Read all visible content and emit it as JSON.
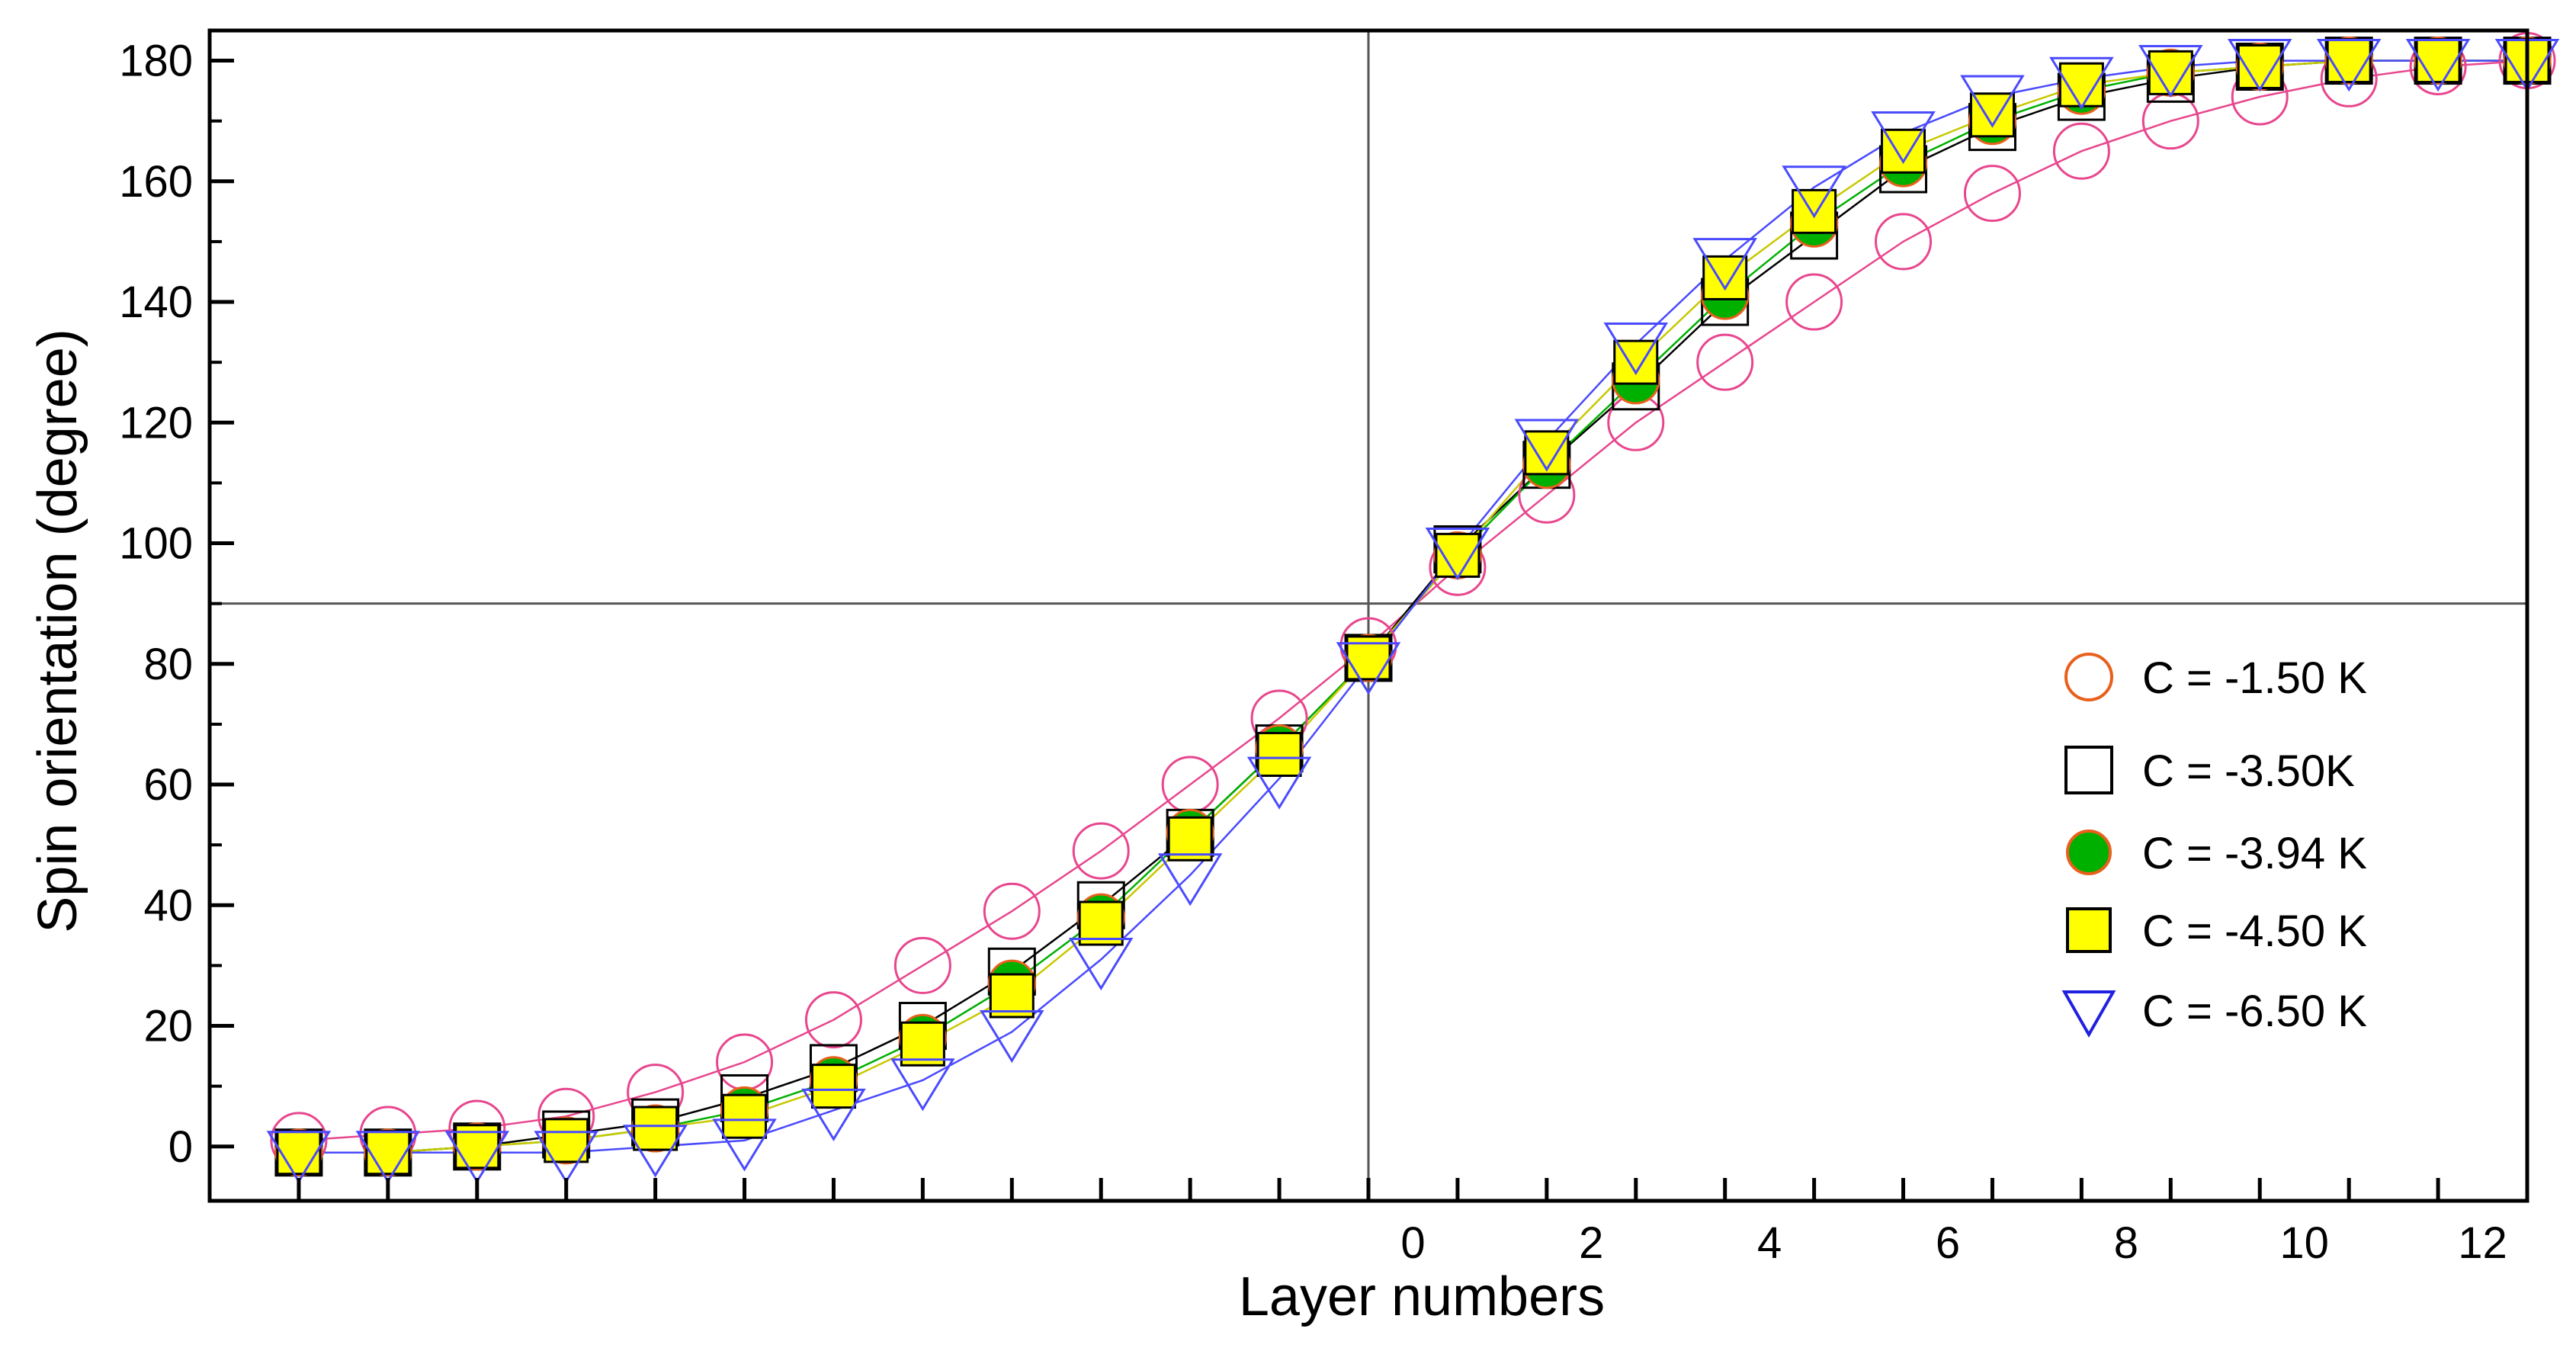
{
  "chart_data": {
    "type": "scatter",
    "xlabel": "Layer numbers",
    "ylabel": "Spin orientation (degree)",
    "xlim": [
      -13.5,
      12.5
    ],
    "ylim": [
      -9,
      185
    ],
    "x_ticks": [
      0,
      2,
      4,
      6,
      8,
      10,
      12
    ],
    "y_ticks": [
      0,
      20,
      40,
      60,
      80,
      100,
      120,
      140,
      160,
      180
    ],
    "grid": false,
    "reference_lines": {
      "x": -0.5,
      "y": 90
    },
    "legend_position": "right",
    "x": [
      -12.5,
      -11.5,
      -10.5,
      -9.5,
      -8.5,
      -7.5,
      -6.5,
      -5.5,
      -4.5,
      -3.5,
      -2.5,
      -1.5,
      -0.5,
      0.5,
      1.5,
      2.5,
      3.5,
      4.5,
      5.5,
      6.5,
      7.5,
      8.5,
      9.5,
      10.5,
      11.5,
      12.5
    ],
    "series": [
      {
        "name": "C = -1.50 K",
        "marker": "circle-open",
        "color": "#e8468e",
        "legend_color": "#e8601c",
        "values": [
          1,
          2,
          3,
          5,
          9,
          14,
          21,
          30,
          39,
          49,
          60,
          71,
          83,
          96,
          108,
          120,
          130,
          140,
          150,
          158,
          165,
          170,
          174,
          177,
          179,
          180
        ]
      },
      {
        "name": "C = -3.50K",
        "marker": "square-open",
        "color": "#000000",
        "legend_color": "#000000",
        "values": [
          -1,
          -1,
          0,
          2,
          4,
          8,
          13,
          20,
          29,
          40,
          52,
          66,
          81,
          99,
          113,
          126,
          140,
          151,
          162,
          169,
          174,
          177,
          179,
          180,
          180,
          180
        ]
      },
      {
        "name": "C = -3.94 K",
        "marker": "circle-filled",
        "color": "#00b000",
        "legend_color": "#e8601c",
        "values": [
          -1,
          -1,
          0,
          1,
          3,
          6,
          11,
          18,
          27,
          38,
          52,
          66,
          81,
          98,
          113,
          127,
          141,
          153,
          163,
          170,
          175,
          178,
          179,
          180,
          180,
          180
        ]
      },
      {
        "name": "C = -4.50 K",
        "marker": "square-filled",
        "color": "#ffff00",
        "legend_color": "#000000",
        "values": [
          -1,
          -1,
          0,
          1,
          3,
          5,
          10,
          17,
          25,
          37,
          51,
          65,
          81,
          98,
          115,
          130,
          144,
          155,
          165,
          171,
          176,
          178,
          179,
          180,
          180,
          180
        ]
      },
      {
        "name": "C = -6.50 K",
        "marker": "triangle-down-open",
        "color": "#4a4aff",
        "legend_color": "#2020e0",
        "values": [
          -1,
          -1,
          -1,
          -1,
          0,
          1,
          6,
          11,
          19,
          31,
          45,
          61,
          80,
          99,
          117,
          133,
          147,
          159,
          168,
          174,
          177,
          179,
          180,
          180,
          180,
          180
        ]
      }
    ]
  }
}
